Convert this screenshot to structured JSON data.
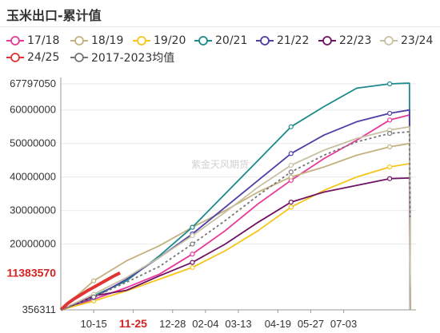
{
  "title": "玉米出口-累计值",
  "watermark": "紫金天风期货",
  "legend": [
    {
      "name": "17/18",
      "color": "#e8389a"
    },
    {
      "name": "18/19",
      "color": "#c3b27f"
    },
    {
      "name": "19/20",
      "color": "#f5c518"
    },
    {
      "name": "20/21",
      "color": "#1b8a8a"
    },
    {
      "name": "21/22",
      "color": "#4b3fa6"
    },
    {
      "name": "22/23",
      "color": "#6f1262"
    },
    {
      "name": "23/24",
      "color": "#c8c0a3"
    },
    {
      "name": "24/25",
      "color": "#e23232"
    },
    {
      "name": "2017-2023均值",
      "color": "#777777"
    }
  ],
  "chart_data": {
    "type": "line",
    "title": "玉米出口-累计值",
    "xlabel": "",
    "ylabel": "",
    "ylim": [
      356311,
      67797050
    ],
    "y_ticks": [
      "67797050",
      "60000000",
      "50000000",
      "40000000",
      "30000000",
      "20000000",
      "356311"
    ],
    "x_ticks": [
      "10-15",
      "11-25",
      "12-28",
      "02-04",
      "03-13",
      "04-19",
      "05-27",
      "07-03"
    ],
    "highlight_label": "11383570",
    "highlight_tick": "11-25",
    "series": [
      {
        "name": "17/18",
        "x": [
          0,
          5,
          10,
          15,
          20,
          25,
          30,
          35,
          40,
          45,
          50,
          53
        ],
        "values": [
          356311,
          3500000,
          7000000,
          11000000,
          17000000,
          24000000,
          32000000,
          39000000,
          45500000,
          51000000,
          57000000,
          58500000
        ]
      },
      {
        "name": "18/19",
        "x": [
          0,
          5,
          10,
          15,
          20,
          25,
          30,
          35,
          40,
          45,
          50,
          53
        ],
        "values": [
          356311,
          9000000,
          15000000,
          19500000,
          25000000,
          30000000,
          35500000,
          40000000,
          43000000,
          46500000,
          49000000,
          50000000
        ]
      },
      {
        "name": "19/20",
        "x": [
          0,
          5,
          10,
          15,
          20,
          25,
          30,
          35,
          40,
          45,
          50,
          53
        ],
        "values": [
          356311,
          3000000,
          6000000,
          9500000,
          13000000,
          18000000,
          24000000,
          31000000,
          36000000,
          40000000,
          43000000,
          44000000
        ]
      },
      {
        "name": "20/21",
        "x": [
          0,
          5,
          10,
          15,
          20,
          25,
          30,
          35,
          40,
          45,
          50,
          53
        ],
        "values": [
          356311,
          4500000,
          9000000,
          16500000,
          25000000,
          35000000,
          45000000,
          55000000,
          61000000,
          66500000,
          67797050,
          68000000
        ]
      },
      {
        "name": "21/22",
        "x": [
          0,
          5,
          10,
          15,
          20,
          25,
          30,
          35,
          40,
          45,
          50,
          53
        ],
        "values": [
          356311,
          4000000,
          9500000,
          16000000,
          23000000,
          31000000,
          39000000,
          47000000,
          52500000,
          56500000,
          59000000,
          60000000
        ]
      },
      {
        "name": "22/23",
        "x": [
          0,
          5,
          10,
          15,
          20,
          25,
          30,
          35,
          40,
          45,
          50,
          53
        ],
        "values": [
          356311,
          4500000,
          6200000,
          10500000,
          14500000,
          20000000,
          26500000,
          32500000,
          35500000,
          37500000,
          39500000,
          39700000
        ]
      },
      {
        "name": "23/24",
        "x": [
          0,
          5,
          10,
          15,
          20,
          25,
          30,
          35,
          40,
          45,
          50,
          53
        ],
        "values": [
          356311,
          5000000,
          10000000,
          16000000,
          22500000,
          29500000,
          37000000,
          43500000,
          48000000,
          51500000,
          54000000,
          55000000
        ]
      },
      {
        "name": "24/25",
        "x": [
          0,
          1,
          2,
          3,
          4,
          5,
          6,
          7,
          8,
          9
        ],
        "values": [
          356311,
          2200000,
          3600000,
          4800000,
          6000000,
          7100000,
          8200000,
          9300000,
          10400000,
          11383570
        ]
      },
      {
        "name": "2017-2023均值",
        "x": [
          0,
          5,
          10,
          15,
          20,
          25,
          30,
          35,
          40,
          45,
          50,
          53
        ],
        "values": [
          356311,
          4200000,
          8600000,
          13300000,
          20000000,
          27000000,
          34500000,
          41500000,
          46500000,
          50500000,
          53000000,
          53500000
        ]
      }
    ]
  }
}
